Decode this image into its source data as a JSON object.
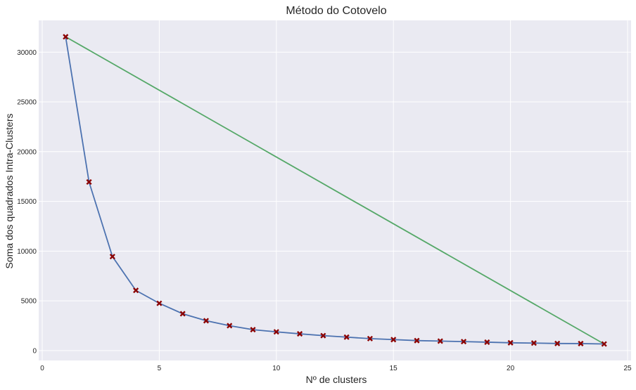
{
  "chart_data": {
    "type": "line",
    "title": "Método do Cotovelo",
    "xlabel": "Nº de clusters",
    "ylabel": "Soma dos quadrados Intra-Clusters",
    "xlim": [
      -0.15,
      25.15
    ],
    "ylim": [
      -1000,
      33200
    ],
    "xticks": [
      0,
      5,
      10,
      15,
      20,
      25
    ],
    "yticks": [
      0,
      5000,
      10000,
      15000,
      20000,
      25000,
      30000
    ],
    "grid": true,
    "series": [
      {
        "kind": "line-with-markers",
        "marker": "x",
        "line_color": "#4c72b0",
        "marker_color": "#8b0000",
        "x": [
          1,
          2,
          3,
          4,
          5,
          6,
          7,
          8,
          9,
          10,
          11,
          12,
          13,
          14,
          15,
          16,
          17,
          18,
          19,
          20,
          21,
          22,
          23,
          24
        ],
        "y": [
          31550,
          16950,
          9450,
          6050,
          4750,
          3700,
          3000,
          2500,
          2100,
          1880,
          1680,
          1500,
          1350,
          1200,
          1100,
          1000,
          950,
          900,
          840,
          780,
          750,
          710,
          700,
          660
        ]
      },
      {
        "kind": "line",
        "line_color": "#55a868",
        "x": [
          1,
          24
        ],
        "y": [
          31550,
          660
        ]
      }
    ],
    "colors": {
      "plot_background": "#eaeaf2",
      "grid": "#ffffff"
    }
  }
}
